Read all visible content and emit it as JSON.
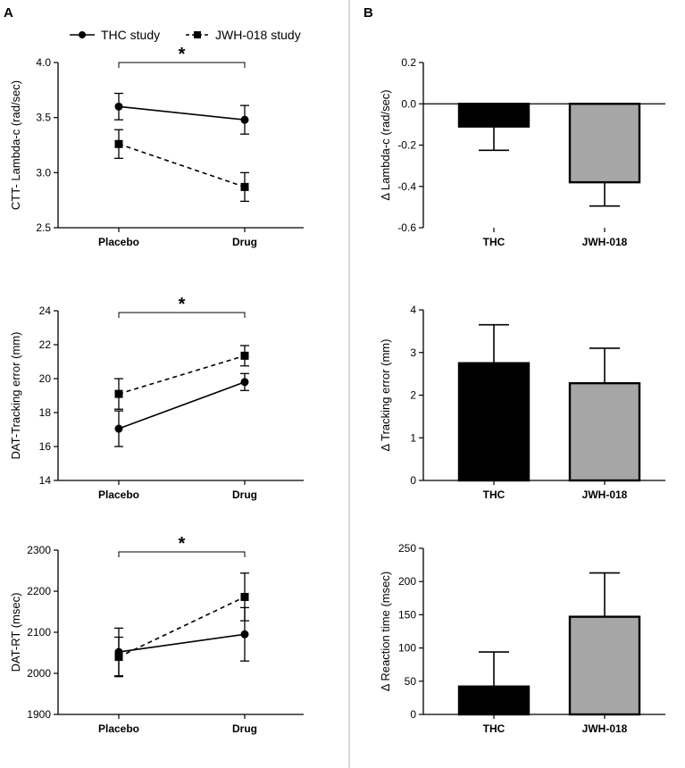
{
  "panel_labels": {
    "a": "A",
    "b": "B"
  },
  "legend": {
    "items": [
      {
        "label": "THC study",
        "marker": "circle",
        "line": "solid"
      },
      {
        "label": "JWH-018 study",
        "marker": "square",
        "line": "dashed"
      }
    ]
  },
  "colors": {
    "thc_bar": "#000000",
    "jwh_bar": "#a6a6a6",
    "line": "#000000",
    "divider": "#b0b0b0"
  },
  "chart_data": [
    {
      "id": "a1",
      "type": "line",
      "ylabel": "CTT- Lambda-c (rad/sec)",
      "categories": [
        "Placebo",
        "Drug"
      ],
      "ylim": [
        2.5,
        4.0
      ],
      "yticks": [
        "2.5",
        "3.0",
        "3.5",
        "4.0"
      ],
      "series": [
        {
          "name": "THC study",
          "values": [
            3.6,
            3.48
          ],
          "errors": [
            0.12,
            0.13
          ]
        },
        {
          "name": "JWH-018 study",
          "values": [
            3.26,
            2.87
          ],
          "errors": [
            0.13,
            0.13
          ]
        }
      ],
      "annotation": "*"
    },
    {
      "id": "a2",
      "type": "line",
      "ylabel": "DAT-Tracking error (mm)",
      "categories": [
        "Placebo",
        "Drug"
      ],
      "ylim": [
        14,
        24
      ],
      "yticks": [
        "14",
        "16",
        "18",
        "20",
        "22",
        "24"
      ],
      "series": [
        {
          "name": "THC study",
          "values": [
            17.05,
            19.8
          ],
          "errors": [
            1.05,
            0.5
          ]
        },
        {
          "name": "JWH-018 study",
          "values": [
            19.1,
            21.35
          ],
          "errors": [
            0.9,
            0.6
          ]
        }
      ],
      "annotation": "*"
    },
    {
      "id": "a3",
      "type": "line",
      "ylabel": "DAT-RT (msec)",
      "categories": [
        "Placebo",
        "Drug"
      ],
      "ylim": [
        1900,
        2300
      ],
      "yticks": [
        "1900",
        "2000",
        "2100",
        "2200",
        "2300"
      ],
      "series": [
        {
          "name": "THC study",
          "values": [
            2052,
            2095
          ],
          "errors": [
            58,
            65
          ]
        },
        {
          "name": "JWH-018 study",
          "values": [
            2040,
            2186
          ],
          "errors": [
            48,
            58
          ]
        }
      ],
      "annotation": "*"
    },
    {
      "id": "b1",
      "type": "bar",
      "ylabel": "Δ Lambda-c (rad/sec)",
      "categories": [
        "THC",
        "JWH-018"
      ],
      "ylim": [
        -0.6,
        0.2
      ],
      "yticks": [
        "-0.6",
        "-0.4",
        "-0.2",
        "0.0",
        "0.2"
      ],
      "values": [
        -0.11,
        -0.38
      ],
      "errors": [
        0.115,
        0.115
      ]
    },
    {
      "id": "b2",
      "type": "bar",
      "ylabel": "Δ Tracking error (mm)",
      "categories": [
        "THC",
        "JWH-018"
      ],
      "ylim": [
        0,
        4
      ],
      "yticks": [
        "0",
        "1",
        "2",
        "3",
        "4"
      ],
      "values": [
        2.75,
        2.28
      ],
      "errors": [
        0.9,
        0.82
      ]
    },
    {
      "id": "b3",
      "type": "bar",
      "ylabel": "Δ Reaction time (msec)",
      "categories": [
        "THC",
        "JWH-018"
      ],
      "ylim": [
        0,
        250
      ],
      "yticks": [
        "0",
        "50",
        "100",
        "150",
        "200",
        "250"
      ],
      "values": [
        42,
        147
      ],
      "errors": [
        52,
        66
      ]
    }
  ]
}
